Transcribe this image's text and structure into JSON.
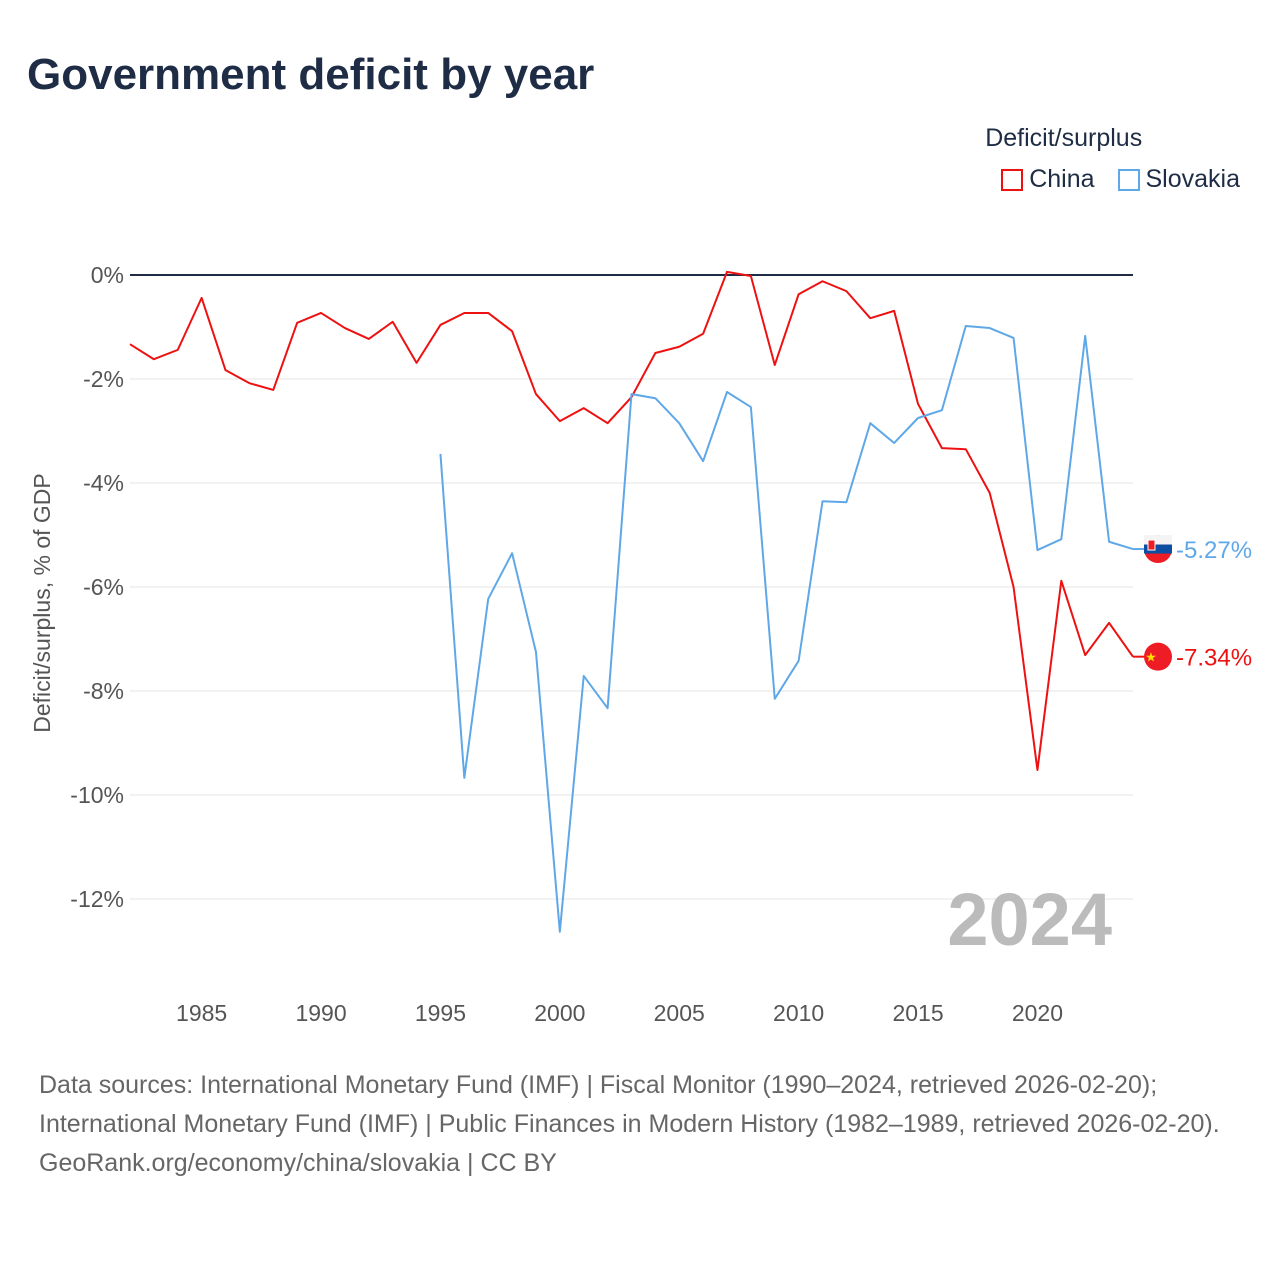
{
  "chart_data": {
    "type": "line",
    "title": "Government deficit by year",
    "ylabel": "Deficit/surplus, % of GDP",
    "xlabel": "",
    "ylim": [
      -13.5,
      0.6
    ],
    "xlim": [
      1982,
      2024
    ],
    "yticks": [
      0,
      -2,
      -4,
      -6,
      -8,
      -10,
      -12
    ],
    "ytick_labels": [
      "0%",
      "-2%",
      "-4%",
      "-6%",
      "-8%",
      "-10%",
      "-12%"
    ],
    "xticks": [
      1985,
      1990,
      1995,
      2000,
      2005,
      2010,
      2015,
      2020
    ],
    "xtick_labels": [
      "1985",
      "1990",
      "1995",
      "2000",
      "2005",
      "2010",
      "2015",
      "2020"
    ],
    "legend_title": "Deficit/surplus",
    "legend_position": "top-right",
    "year_label": "2024",
    "series": [
      {
        "name": "China",
        "color": "#ee1111",
        "start": 1982,
        "values": [
          -1.33,
          -1.62,
          -1.44,
          -0.44,
          -1.83,
          -2.08,
          -2.21,
          -0.92,
          -0.73,
          -1.02,
          -1.23,
          -0.9,
          -1.69,
          -0.96,
          -0.73,
          -0.73,
          -1.08,
          -2.29,
          -2.81,
          -2.56,
          -2.85,
          -2.35,
          -1.5,
          -1.38,
          -1.13,
          0.06,
          -0.02,
          -1.73,
          -0.37,
          -0.12,
          -0.31,
          -0.83,
          -0.69,
          -2.48,
          -3.33,
          -3.35,
          -4.19,
          -6.0,
          -9.52,
          -5.88,
          -7.31,
          -6.69,
          -7.34
        ],
        "end_label": "-7.34%"
      },
      {
        "name": "Slovakia",
        "color": "#5fa8e8",
        "start": 1995,
        "values": [
          -3.44,
          -9.67,
          -6.23,
          -5.35,
          -7.25,
          -12.63,
          -7.71,
          -8.33,
          -2.29,
          -2.37,
          -2.85,
          -3.58,
          -2.25,
          -2.54,
          -8.15,
          -7.42,
          -4.35,
          -4.37,
          -2.85,
          -3.23,
          -2.75,
          -2.6,
          -0.98,
          -1.02,
          -1.21,
          -5.29,
          -5.08,
          -1.17,
          -5.13,
          -5.27
        ],
        "end_label": "-5.27%"
      }
    ]
  },
  "footer": {
    "sources": "Data sources: International Monetary Fund (IMF) | Fiscal Monitor (1990–2024, retrieved 2026-02-20); International Monetary Fund (IMF) | Public Finances in Modern History (1982–1989, retrieved 2026-02-20).",
    "credit": "GeoRank.org/economy/china/slovakia | CC BY"
  }
}
